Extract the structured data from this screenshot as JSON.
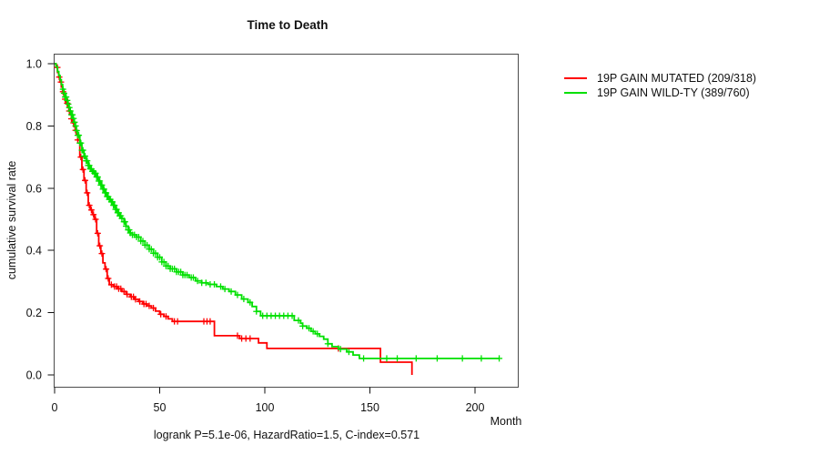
{
  "title": "Time to Death",
  "y_axis": {
    "label": "cumulative survival rate",
    "ticks": [
      "0.0",
      "0.2",
      "0.4",
      "0.6",
      "0.8",
      "1.0"
    ],
    "tick_values": [
      0,
      0.2,
      0.4,
      0.6,
      0.8,
      1.0
    ]
  },
  "x_axis": {
    "label": "Month",
    "ticks": [
      "0",
      "50",
      "100",
      "150",
      "200"
    ],
    "tick_values": [
      0,
      50,
      100,
      150,
      200
    ]
  },
  "footer": "logrank P=5.1e-06, HazardRatio=1.5, C-index=0.571",
  "legend": {
    "items": [
      {
        "label": "19P GAIN MUTATED (209/318)",
        "color": "#ff0000"
      },
      {
        "label": "19P GAIN WILD-TY (389/760)",
        "color": "#00e000"
      }
    ]
  },
  "chart_data": {
    "type": "line",
    "subtype": "kaplan-meier-step",
    "title": "Time to Death",
    "xlabel": "Month",
    "ylabel": "cumulative survival rate",
    "xlim": [
      0,
      220
    ],
    "ylim": [
      0,
      1.0
    ],
    "x_ticks": [
      0,
      50,
      100,
      150,
      200
    ],
    "y_ticks": [
      0,
      0.2,
      0.4,
      0.6,
      0.8,
      1.0
    ],
    "grid": false,
    "legend_position": "right-outside",
    "annotation": "logrank P=5.1e-06, HazardRatio=1.5, C-index=0.571",
    "logrank_p": "5.1e-06",
    "hazard_ratio": "1.5",
    "c_index": "0.571",
    "series": [
      {
        "id": "mutated",
        "name": "19P GAIN MUTATED (209/318)",
        "color": "#ff0000",
        "n_events": 209,
        "n_total": 318,
        "steps": [
          [
            0,
            1.0
          ],
          [
            0.7,
            0.988
          ],
          [
            1.4,
            0.972
          ],
          [
            2,
            0.957
          ],
          [
            2.6,
            0.941
          ],
          [
            3.2,
            0.925
          ],
          [
            3.8,
            0.91
          ],
          [
            4.4,
            0.898
          ],
          [
            5,
            0.886
          ],
          [
            5.6,
            0.873
          ],
          [
            6.2,
            0.86
          ],
          [
            6.8,
            0.848
          ],
          [
            7.4,
            0.836
          ],
          [
            8,
            0.823
          ],
          [
            8.6,
            0.81
          ],
          [
            9.2,
            0.798
          ],
          [
            9.8,
            0.786
          ],
          [
            10.4,
            0.772
          ],
          [
            11,
            0.755
          ],
          [
            12,
            0.7
          ],
          [
            13,
            0.66
          ],
          [
            14,
            0.625
          ],
          [
            15,
            0.585
          ],
          [
            16,
            0.545
          ],
          [
            17,
            0.53
          ],
          [
            18,
            0.515
          ],
          [
            19,
            0.5
          ],
          [
            20,
            0.455
          ],
          [
            21,
            0.415
          ],
          [
            22,
            0.39
          ],
          [
            23,
            0.36
          ],
          [
            24,
            0.34
          ],
          [
            25,
            0.31
          ],
          [
            26,
            0.29
          ],
          [
            28,
            0.284
          ],
          [
            30,
            0.277
          ],
          [
            32,
            0.268
          ],
          [
            34,
            0.259
          ],
          [
            36,
            0.251
          ],
          [
            38,
            0.243
          ],
          [
            40,
            0.236
          ],
          [
            42,
            0.228
          ],
          [
            44,
            0.222
          ],
          [
            46,
            0.215
          ],
          [
            48,
            0.205
          ],
          [
            50,
            0.195
          ],
          [
            52,
            0.188
          ],
          [
            54,
            0.18
          ],
          [
            56,
            0.172
          ],
          [
            76,
            0.126
          ],
          [
            88,
            0.117
          ],
          [
            97,
            0.103
          ],
          [
            101,
            0.085
          ],
          [
            155,
            0.041
          ],
          [
            170,
            0.0
          ]
        ],
        "censor_marks": [
          1.3,
          2.2,
          3,
          4,
          5,
          6,
          7,
          8,
          9,
          10,
          11,
          12.5,
          13.5,
          14.5,
          15.5,
          16.5,
          17.5,
          18.5,
          19.5,
          20.5,
          21.5,
          22.5,
          24.5,
          25.5,
          27,
          28.5,
          29.5,
          30.5,
          31.5,
          33,
          34.5,
          36.5,
          37.5,
          38.5,
          40.5,
          42.5,
          43.5,
          45,
          47,
          50.5,
          53,
          57,
          58.5,
          71,
          72.5,
          74,
          87,
          89,
          91,
          93,
          135
        ]
      },
      {
        "id": "wild-ty",
        "name": "19P GAIN WILD-TY (389/760)",
        "color": "#00e000",
        "n_events": 389,
        "n_total": 760,
        "steps": [
          [
            0,
            1.0
          ],
          [
            0.7,
            0.99
          ],
          [
            1.4,
            0.975
          ],
          [
            2,
            0.962
          ],
          [
            2.6,
            0.948
          ],
          [
            3.2,
            0.933
          ],
          [
            3.8,
            0.918
          ],
          [
            4.4,
            0.905
          ],
          [
            5,
            0.893
          ],
          [
            5.6,
            0.882
          ],
          [
            6.2,
            0.87
          ],
          [
            6.8,
            0.859
          ],
          [
            7.4,
            0.848
          ],
          [
            8,
            0.836
          ],
          [
            8.6,
            0.824
          ],
          [
            9.2,
            0.812
          ],
          [
            9.8,
            0.8
          ],
          [
            10.4,
            0.785
          ],
          [
            11,
            0.77
          ],
          [
            12,
            0.745
          ],
          [
            13,
            0.722
          ],
          [
            14,
            0.703
          ],
          [
            15,
            0.688
          ],
          [
            16,
            0.673
          ],
          [
            17,
            0.662
          ],
          [
            18,
            0.654
          ],
          [
            19,
            0.648
          ],
          [
            20,
            0.636
          ],
          [
            21,
            0.623
          ],
          [
            22,
            0.61
          ],
          [
            23,
            0.597
          ],
          [
            24,
            0.585
          ],
          [
            25,
            0.573
          ],
          [
            26,
            0.564
          ],
          [
            27,
            0.556
          ],
          [
            28,
            0.545
          ],
          [
            29,
            0.532
          ],
          [
            30,
            0.521
          ],
          [
            31,
            0.511
          ],
          [
            32,
            0.503
          ],
          [
            33,
            0.492
          ],
          [
            34,
            0.478
          ],
          [
            35,
            0.466
          ],
          [
            36,
            0.456
          ],
          [
            37,
            0.45
          ],
          [
            39,
            0.443
          ],
          [
            41,
            0.43
          ],
          [
            43,
            0.417
          ],
          [
            45,
            0.404
          ],
          [
            47,
            0.391
          ],
          [
            49,
            0.378
          ],
          [
            51,
            0.363
          ],
          [
            53,
            0.35
          ],
          [
            55,
            0.341
          ],
          [
            58,
            0.331
          ],
          [
            61,
            0.321
          ],
          [
            64,
            0.313
          ],
          [
            67,
            0.302
          ],
          [
            70,
            0.296
          ],
          [
            73,
            0.291
          ],
          [
            77,
            0.284
          ],
          [
            80,
            0.276
          ],
          [
            83,
            0.268
          ],
          [
            86,
            0.257
          ],
          [
            89,
            0.244
          ],
          [
            92,
            0.233
          ],
          [
            94,
            0.22
          ],
          [
            96,
            0.204
          ],
          [
            98,
            0.19
          ],
          [
            114,
            0.175
          ],
          [
            117,
            0.166
          ],
          [
            118,
            0.157
          ],
          [
            120,
            0.15
          ],
          [
            122,
            0.14
          ],
          [
            124,
            0.132
          ],
          [
            126,
            0.124
          ],
          [
            128,
            0.115
          ],
          [
            130,
            0.1
          ],
          [
            132,
            0.091
          ],
          [
            135,
            0.083
          ],
          [
            139,
            0.074
          ],
          [
            142,
            0.064
          ],
          [
            145,
            0.053
          ],
          [
            211.5,
            0.053
          ]
        ],
        "censor_marks": [
          4,
          4.5,
          5,
          5.5,
          6,
          6.5,
          7,
          7.5,
          8,
          8.5,
          9,
          9.5,
          10,
          10.5,
          11,
          11.5,
          12,
          12.5,
          13,
          13.5,
          14,
          14.5,
          15,
          15.5,
          16,
          16.5,
          17,
          17.5,
          18,
          18.5,
          19,
          19.5,
          20,
          20.5,
          21,
          21.5,
          22,
          22.5,
          23,
          23.5,
          24,
          24.5,
          25,
          25.5,
          26,
          26.5,
          27,
          27.5,
          28,
          28.5,
          29,
          29.5,
          30,
          30.5,
          31,
          31.5,
          32,
          33,
          33.5,
          34,
          35,
          35.5,
          36,
          37,
          38,
          39,
          40,
          41,
          42,
          43,
          44,
          45,
          46,
          47,
          48,
          49,
          50,
          51,
          52,
          53,
          54,
          55,
          56,
          57,
          58,
          59,
          60,
          61,
          62,
          63,
          65,
          66,
          68,
          70,
          72,
          74,
          76,
          79,
          81,
          84,
          87,
          90,
          93,
          96,
          99,
          101,
          103,
          105,
          107,
          109,
          111,
          113,
          116,
          118,
          121,
          123,
          125,
          130,
          136,
          140,
          147,
          158,
          163,
          172,
          182,
          194,
          203,
          211.5
        ]
      }
    ]
  }
}
